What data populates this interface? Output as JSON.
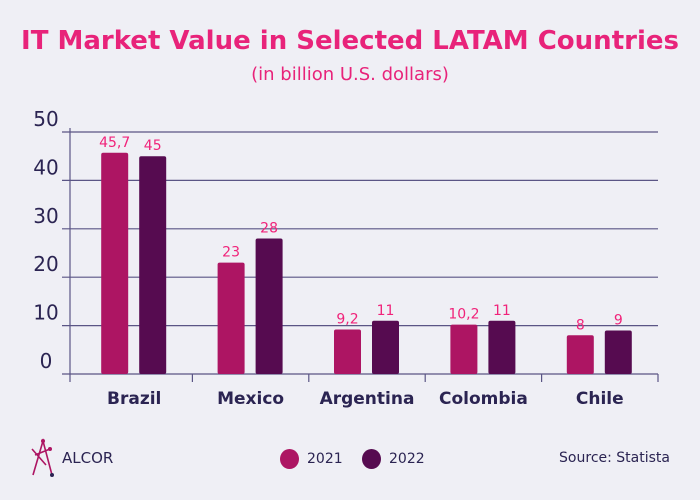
{
  "chart_data": {
    "type": "bar",
    "title": "IT Market Value in Selected LATAM Countries",
    "subtitle": "(in billion U.S. dollars)",
    "categories": [
      "Brazil",
      "Mexico",
      "Argentina",
      "Colombia",
      "Chile"
    ],
    "series": [
      {
        "name": "2021",
        "values": [
          45.7,
          23,
          9.2,
          10.2,
          8
        ],
        "labels": [
          "45,7",
          "23",
          "9,2",
          "10,2",
          "8"
        ],
        "color": "#ad1563"
      },
      {
        "name": "2022",
        "values": [
          45,
          28,
          11,
          11,
          9
        ],
        "labels": [
          "45",
          "28",
          "11",
          "11",
          "9"
        ],
        "color": "#560b50"
      }
    ],
    "yticks": [
      "0",
      "10",
      "20",
      "30",
      "40",
      "50"
    ],
    "ylim": [
      0,
      50
    ],
    "grid": true,
    "legend": "bottom-center",
    "label_color": "#f0237a"
  },
  "source": "Source: Statista",
  "logo": "ALCOR"
}
